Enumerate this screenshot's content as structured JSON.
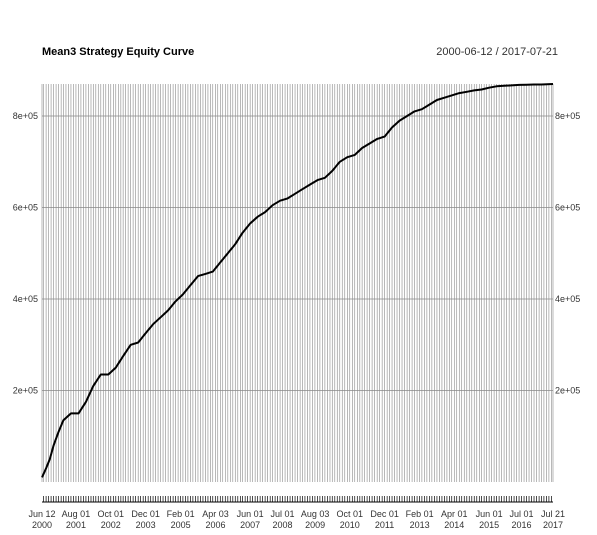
{
  "chart_data": {
    "type": "line",
    "title": "Mean3 Strategy Equity Curve",
    "date_range": "2000-06-12 / 2017-07-21",
    "xlabel": "",
    "ylabel": "",
    "x_range": [
      "2000-06-12",
      "2017-07-21"
    ],
    "ylim": [
      0,
      870000
    ],
    "y_ticks": [
      {
        "value": 200000,
        "label": "2e+05"
      },
      {
        "value": 400000,
        "label": "4e+05"
      },
      {
        "value": 600000,
        "label": "6e+05"
      },
      {
        "value": 800000,
        "label": "8e+05"
      }
    ],
    "x_ticks": [
      {
        "date": "2000-06-12",
        "line1": "Jun 12",
        "line2": "2000"
      },
      {
        "date": "2001-08-01",
        "line1": "Aug 01",
        "line2": "2001"
      },
      {
        "date": "2002-10-01",
        "line1": "Oct 01",
        "line2": "2002"
      },
      {
        "date": "2003-12-01",
        "line1": "Dec 01",
        "line2": "2003"
      },
      {
        "date": "2005-02-01",
        "line1": "Feb 01",
        "line2": "2005"
      },
      {
        "date": "2006-04-03",
        "line1": "Apr 03",
        "line2": "2006"
      },
      {
        "date": "2007-06-01",
        "line1": "Jun 01",
        "line2": "2007"
      },
      {
        "date": "2008-07-01",
        "line1": "Jul 01",
        "line2": "2008"
      },
      {
        "date": "2009-08-03",
        "line1": "Aug 03",
        "line2": "2009"
      },
      {
        "date": "2010-10-01",
        "line1": "Oct 01",
        "line2": "2010"
      },
      {
        "date": "2011-12-01",
        "line1": "Dec 01",
        "line2": "2011"
      },
      {
        "date": "2013-02-01",
        "line1": "Feb 01",
        "line2": "2013"
      },
      {
        "date": "2014-04-01",
        "line1": "Apr 01",
        "line2": "2014"
      },
      {
        "date": "2015-06-01",
        "line1": "Jun 01",
        "line2": "2015"
      },
      {
        "date": "2016-07-01",
        "line1": "Jul 01",
        "line2": "2016"
      },
      {
        "date": "2017-07-21",
        "line1": "Jul 21",
        "line2": "2017"
      }
    ],
    "grid": true,
    "legend": "none",
    "line_color": "#000000",
    "grid_color": "#888888",
    "series": [
      {
        "x": [
          "2000-06-12",
          "2000-08-01",
          "2000-09-15",
          "2000-11-01",
          "2001-01-01",
          "2001-03-01",
          "2001-06-01",
          "2001-09-01",
          "2001-12-01",
          "2002-03-01",
          "2002-06-01",
          "2002-09-01",
          "2002-12-01",
          "2003-03-01",
          "2003-06-01",
          "2003-09-01",
          "2003-12-01",
          "2004-03-01",
          "2004-06-01",
          "2004-09-01",
          "2004-12-01",
          "2005-03-01",
          "2005-06-01",
          "2005-09-01",
          "2005-12-01",
          "2006-03-01",
          "2006-06-01",
          "2006-09-01",
          "2006-12-01",
          "2007-03-01",
          "2007-06-01",
          "2007-09-01",
          "2007-12-01",
          "2008-03-01",
          "2008-06-01",
          "2008-09-01",
          "2008-12-01",
          "2009-03-01",
          "2009-06-01",
          "2009-09-01",
          "2009-12-01",
          "2010-03-01",
          "2010-06-01",
          "2010-09-01",
          "2010-12-01",
          "2011-03-01",
          "2011-06-01",
          "2011-09-01",
          "2011-12-01",
          "2012-03-01",
          "2012-06-01",
          "2012-09-01",
          "2012-12-01",
          "2013-03-01",
          "2013-06-01",
          "2013-09-01",
          "2013-12-01",
          "2014-03-01",
          "2014-06-01",
          "2014-09-01",
          "2014-12-01",
          "2015-03-01",
          "2015-06-01",
          "2015-09-01",
          "2015-12-01",
          "2016-03-01",
          "2016-06-01",
          "2016-09-01",
          "2016-12-01",
          "2017-03-01",
          "2017-07-21"
        ],
        "values": [
          10000,
          30000,
          50000,
          80000,
          110000,
          135000,
          150000,
          150000,
          175000,
          210000,
          235000,
          235000,
          250000,
          275000,
          300000,
          305000,
          325000,
          345000,
          360000,
          375000,
          395000,
          410000,
          430000,
          450000,
          455000,
          460000,
          480000,
          500000,
          520000,
          545000,
          565000,
          580000,
          590000,
          605000,
          615000,
          620000,
          630000,
          640000,
          650000,
          660000,
          665000,
          680000,
          700000,
          710000,
          715000,
          730000,
          740000,
          750000,
          755000,
          775000,
          790000,
          800000,
          810000,
          815000,
          825000,
          835000,
          840000,
          845000,
          850000,
          853000,
          856000,
          858000,
          862000,
          865000,
          866000,
          867000,
          868000,
          868500,
          869000,
          869000,
          870000
        ]
      }
    ]
  }
}
